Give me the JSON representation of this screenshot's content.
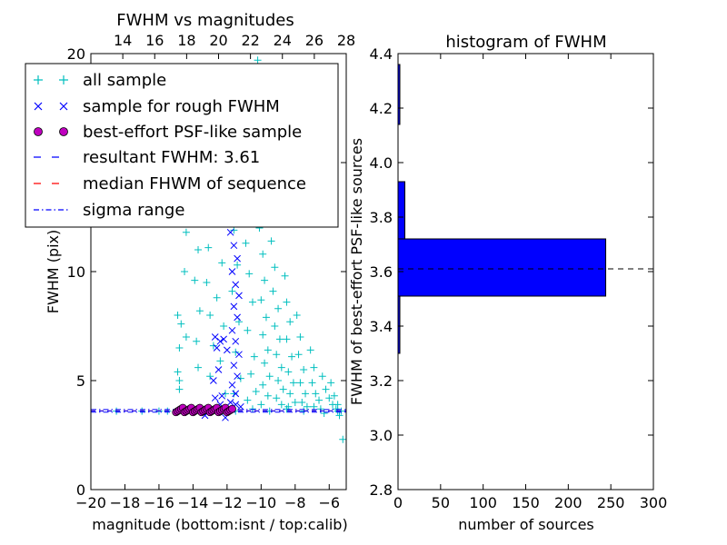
{
  "chart_data": [
    {
      "type": "scatter",
      "title": "FWHM vs magnitudes",
      "xlabel": "magnitude (bottom:isnt / top:calib)",
      "ylabel": "FWHM (pix)",
      "xlim": [
        -20,
        -5
      ],
      "ylim": [
        0,
        20
      ],
      "x_ticks": [
        "−20",
        "−18",
        "−16",
        "−14",
        "−12",
        "−10",
        "−8",
        "−6"
      ],
      "y_ticks": [
        "0",
        "5",
        "10",
        "15",
        "20"
      ],
      "top_axis": {
        "lim": [
          12,
          28
        ],
        "ticks": [
          "14",
          "16",
          "18",
          "20",
          "22",
          "24",
          "26",
          "28"
        ]
      },
      "grid": false,
      "legend_position": "top-left",
      "series": [
        {
          "name": "all sample",
          "marker": "+",
          "color": "#00bfbf",
          "values": [
            [
              -14.9,
              8.0
            ],
            [
              -14.8,
              6.5
            ],
            [
              -14.9,
              5.4
            ],
            [
              -14.8,
              4.6
            ],
            [
              -14.7,
              7.6
            ],
            [
              -14.8,
              5.0
            ],
            [
              -14.4,
              11.8
            ],
            [
              -14.3,
              13.1
            ],
            [
              -14.5,
              10.0
            ],
            [
              -14.2,
              14.5
            ],
            [
              -14.4,
              7.0
            ],
            [
              -13.9,
              14.1
            ],
            [
              -13.8,
              12.5
            ],
            [
              -13.7,
              11.0
            ],
            [
              -13.9,
              9.6
            ],
            [
              -13.6,
              8.2
            ],
            [
              -13.8,
              6.8
            ],
            [
              -13.7,
              5.6
            ],
            [
              -13.3,
              12.8
            ],
            [
              -13.1,
              11.1
            ],
            [
              -13.2,
              9.5
            ],
            [
              -13.0,
              8.0
            ],
            [
              -12.8,
              6.6
            ],
            [
              -13.0,
              5.2
            ],
            [
              -12.5,
              13.3
            ],
            [
              -12.3,
              10.4
            ],
            [
              -12.6,
              8.8
            ],
            [
              -12.2,
              7.5
            ],
            [
              -12.4,
              5.9
            ],
            [
              -12.1,
              4.4
            ],
            [
              -11.8,
              13.6
            ],
            [
              -11.6,
              11.9
            ],
            [
              -11.4,
              10.3
            ],
            [
              -11.7,
              9.1
            ],
            [
              -11.3,
              7.7
            ],
            [
              -11.5,
              6.3
            ],
            [
              -11.2,
              5.1
            ],
            [
              -11.6,
              4.4
            ],
            [
              -10.9,
              11.3
            ],
            [
              -10.7,
              9.9
            ],
            [
              -10.5,
              8.6
            ],
            [
              -10.8,
              7.3
            ],
            [
              -10.4,
              6.1
            ],
            [
              -10.6,
              5.3
            ],
            [
              -10.3,
              4.5
            ],
            [
              -10.8,
              4.1
            ],
            [
              -10.1,
              12.0
            ],
            [
              -9.9,
              10.8
            ],
            [
              -9.8,
              9.6
            ],
            [
              -10.0,
              8.7
            ],
            [
              -9.7,
              7.9
            ],
            [
              -9.9,
              7.1
            ],
            [
              -9.6,
              6.4
            ],
            [
              -9.8,
              5.8
            ],
            [
              -9.5,
              5.2
            ],
            [
              -9.9,
              4.8
            ],
            [
              -9.6,
              4.3
            ],
            [
              -10.0,
              3.9
            ],
            [
              -9.4,
              11.4
            ],
            [
              -9.2,
              10.2
            ],
            [
              -9.3,
              9.1
            ],
            [
              -9.0,
              8.3
            ],
            [
              -9.2,
              7.5
            ],
            [
              -8.9,
              6.9
            ],
            [
              -9.1,
              6.2
            ],
            [
              -8.8,
              5.6
            ],
            [
              -9.0,
              5.0
            ],
            [
              -8.7,
              4.6
            ],
            [
              -9.1,
              4.2
            ],
            [
              -8.8,
              3.9
            ],
            [
              -8.6,
              9.8
            ],
            [
              -8.5,
              8.6
            ],
            [
              -8.3,
              7.7
            ],
            [
              -8.5,
              6.9
            ],
            [
              -8.2,
              6.1
            ],
            [
              -8.4,
              5.4
            ],
            [
              -8.1,
              4.9
            ],
            [
              -8.3,
              4.4
            ],
            [
              -8.0,
              4.0
            ],
            [
              -8.4,
              3.8
            ],
            [
              -7.9,
              8.0
            ],
            [
              -7.7,
              7.0
            ],
            [
              -7.8,
              6.2
            ],
            [
              -7.5,
              5.5
            ],
            [
              -7.7,
              4.9
            ],
            [
              -7.4,
              4.4
            ],
            [
              -7.6,
              4.0
            ],
            [
              -7.3,
              3.8
            ],
            [
              -7.1,
              6.4
            ],
            [
              -6.9,
              5.6
            ],
            [
              -7.0,
              4.9
            ],
            [
              -6.8,
              4.4
            ],
            [
              -6.6,
              4.1
            ],
            [
              -6.9,
              3.8
            ],
            [
              -6.4,
              5.2
            ],
            [
              -6.2,
              4.6
            ],
            [
              -6.0,
              4.2
            ],
            [
              -5.8,
              3.9
            ],
            [
              -5.6,
              3.7
            ],
            [
              -5.4,
              3.4
            ],
            [
              -5.9,
              4.9
            ],
            [
              -5.7,
              4.3
            ],
            [
              -5.5,
              3.9
            ],
            [
              -5.3,
              3.6
            ],
            [
              -5.2,
              2.3
            ],
            [
              -6.3,
              3.5
            ],
            [
              -10.2,
              19.7
            ],
            [
              -9.9,
              18.6
            ],
            [
              -9.6,
              17.2
            ],
            [
              -10.3,
              16.0
            ],
            [
              -9.8,
              15.2
            ],
            [
              -10.5,
              14.3
            ],
            [
              -10.0,
              13.5
            ],
            [
              -14.5,
              3.7
            ],
            [
              -13.5,
              3.6
            ],
            [
              -12.5,
              3.7
            ],
            [
              -11.5,
              3.6
            ],
            [
              -10.5,
              3.7
            ],
            [
              -9.5,
              3.6
            ],
            [
              -8.5,
              3.7
            ],
            [
              -7.5,
              3.6
            ],
            [
              -6.5,
              3.7
            ],
            [
              -5.5,
              3.6
            ],
            [
              -17.0,
              3.6
            ],
            [
              -16.0,
              3.6
            ],
            [
              -15.5,
              3.6
            ],
            [
              -18.5,
              3.6
            ]
          ]
        },
        {
          "name": "sample for rough FWHM",
          "marker": "x",
          "color": "#0000ff",
          "values": [
            [
              -11.7,
              13.6
            ],
            [
              -11.6,
              13.0
            ],
            [
              -11.5,
              12.4
            ],
            [
              -11.8,
              11.8
            ],
            [
              -11.6,
              11.2
            ],
            [
              -11.4,
              10.6
            ],
            [
              -11.7,
              10.0
            ],
            [
              -11.5,
              9.4
            ],
            [
              -11.3,
              8.9
            ],
            [
              -11.6,
              8.4
            ],
            [
              -11.4,
              7.9
            ],
            [
              -11.7,
              7.3
            ],
            [
              -11.5,
              6.8
            ],
            [
              -11.3,
              6.2
            ],
            [
              -11.6,
              5.7
            ],
            [
              -11.4,
              5.2
            ],
            [
              -11.7,
              4.8
            ],
            [
              -11.5,
              4.4
            ],
            [
              -12.7,
              7.0
            ],
            [
              -12.4,
              6.8
            ],
            [
              -12.6,
              6.5
            ],
            [
              -12.2,
              6.9
            ],
            [
              -12.0,
              6.4
            ],
            [
              -12.5,
              5.5
            ],
            [
              -12.8,
              5.0
            ],
            [
              -12.3,
              4.3
            ],
            [
              -12.7,
              4.2
            ],
            [
              -12.4,
              3.9
            ],
            [
              -12.1,
              3.3
            ],
            [
              -13.3,
              3.4
            ],
            [
              -11.8,
              4.0
            ],
            [
              -11.5,
              3.9
            ],
            [
              -11.2,
              3.8
            ]
          ]
        },
        {
          "name": "best-effort PSF-like sample",
          "marker": "o",
          "color": "#bf00bf",
          "x_range": [
            -15.0,
            -11.7
          ],
          "y_values": [
            3.55,
            3.6,
            3.65,
            3.7,
            3.75
          ],
          "count": 34
        },
        {
          "name": "resultant FWHM: 3.61",
          "style": "dashed",
          "color": "#0000ff",
          "y": 3.61
        },
        {
          "name": "median FHWM of sequence",
          "style": "dashed",
          "color": "#ff0000",
          "y": 3.61
        },
        {
          "name": "sigma range",
          "style": "dashdot",
          "color": "#0000ff",
          "y": [
            3.55,
            3.67
          ]
        }
      ]
    },
    {
      "type": "bar",
      "orientation": "horizontal",
      "title": "histogram of FWHM",
      "xlabel": "number of sources",
      "ylabel": "FWHM of best-effort PSF-like sources",
      "xlim": [
        0,
        300
      ],
      "ylim": [
        2.8,
        4.4
      ],
      "x_ticks": [
        "0",
        "50",
        "100",
        "150",
        "200",
        "250",
        "300"
      ],
      "y_ticks": [
        "2.8",
        "3.0",
        "3.2",
        "3.4",
        "3.6",
        "3.8",
        "4.0",
        "4.2",
        "4.4"
      ],
      "grid": false,
      "color": "#0000ff",
      "bins": [
        {
          "y0": 3.3,
          "y1": 3.51,
          "value": 1
        },
        {
          "y0": 3.51,
          "y1": 3.72,
          "value": 244
        },
        {
          "y0": 3.72,
          "y1": 3.93,
          "value": 8
        },
        {
          "y0": 3.93,
          "y1": 4.14,
          "value": 0
        },
        {
          "y0": 4.14,
          "y1": 4.36,
          "value": 1
        }
      ],
      "reference_line": {
        "y": 3.61,
        "style": "dashed",
        "color": "#000000"
      }
    }
  ]
}
